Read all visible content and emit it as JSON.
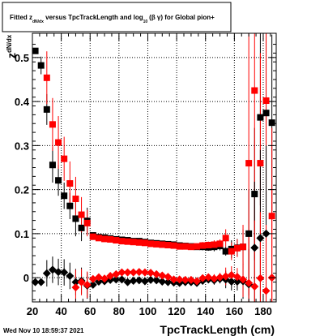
{
  "chart_data": {
    "type": "scatter",
    "title": {
      "prefix": "Fitted  z",
      "sub": "dN/dx",
      "middle": "  versus TpcTrackLength and log",
      "sub2": "10",
      "suffix": "(β γ) for Global pion+"
    },
    "xlabel": "TpcTrackLength (cm)",
    "ylabel": {
      "main": "z",
      "sub": "dN/dx"
    },
    "xlim": [
      20,
      189
    ],
    "ylim": [
      -0.055,
      0.555
    ],
    "xticks": [
      20,
      40,
      60,
      80,
      100,
      120,
      140,
      160,
      180
    ],
    "yticks": [
      0,
      0.1,
      0.2,
      0.3,
      0.4,
      0.5
    ],
    "ytick_labels": [
      "0",
      "0.1",
      "0.2",
      "0.3",
      "0.4",
      "0.5"
    ],
    "grid": true,
    "footer": "Wed Nov 10 18:59:37 2021",
    "series": [
      {
        "marker": "square",
        "color": "#000000",
        "points": [
          [
            22,
            0.515,
            0
          ],
          [
            26,
            0.482,
            0.02
          ],
          [
            30,
            0.382,
            0.035
          ],
          [
            34,
            0.256,
            0.04
          ],
          [
            38,
            0.221,
            0.035
          ],
          [
            42,
            0.186,
            0.03
          ],
          [
            46,
            0.163,
            0.03
          ],
          [
            50,
            0.134,
            0.04
          ],
          [
            54,
            0.113,
            0.03
          ],
          [
            58,
            0.129,
            0.03
          ],
          [
            62,
            0.096,
            0.006
          ],
          [
            66,
            0.092,
            0.006
          ],
          [
            70,
            0.091,
            0.006
          ],
          [
            74,
            0.089,
            0.006
          ],
          [
            78,
            0.087,
            0.006
          ],
          [
            82,
            0.086,
            0.006
          ],
          [
            86,
            0.085,
            0.006
          ],
          [
            90,
            0.083,
            0.006
          ],
          [
            94,
            0.083,
            0.006
          ],
          [
            98,
            0.081,
            0.006
          ],
          [
            102,
            0.079,
            0.006
          ],
          [
            106,
            0.078,
            0.006
          ],
          [
            110,
            0.077,
            0.006
          ],
          [
            114,
            0.076,
            0.006
          ],
          [
            118,
            0.075,
            0.006
          ],
          [
            122,
            0.073,
            0.006
          ],
          [
            126,
            0.072,
            0.006
          ],
          [
            130,
            0.071,
            0.006
          ],
          [
            134,
            0.07,
            0.006
          ],
          [
            138,
            0.07,
            0.008
          ],
          [
            142,
            0.069,
            0.008
          ],
          [
            146,
            0.07,
            0.01
          ],
          [
            150,
            0.072,
            0.01
          ],
          [
            154,
            0.06,
            0.01
          ],
          [
            158,
            0.065,
            0.02
          ],
          [
            162,
            0.068,
            0.02
          ],
          [
            166,
            0.07,
            0.04
          ],
          [
            170,
            0.1,
            0.1
          ],
          [
            174,
            0.19,
            0.15
          ],
          [
            178,
            0.364,
            0.2
          ],
          [
            182,
            0.374,
            0.2
          ],
          [
            186,
            0.352,
            0.2
          ]
        ]
      },
      {
        "marker": "square",
        "color": "#ff0000",
        "points": [
          [
            30,
            0.454,
            0.06
          ],
          [
            34,
            0.348,
            0.06
          ],
          [
            38,
            0.307,
            0.06
          ],
          [
            42,
            0.27,
            0.05
          ],
          [
            46,
            0.214,
            0.05
          ],
          [
            50,
            0.179,
            0.05
          ],
          [
            54,
            0.143,
            0.04
          ],
          [
            58,
            0.124,
            0.03
          ],
          [
            62,
            0.093,
            0.006
          ],
          [
            66,
            0.09,
            0.006
          ],
          [
            70,
            0.088,
            0.006
          ],
          [
            74,
            0.087,
            0.006
          ],
          [
            78,
            0.085,
            0.006
          ],
          [
            82,
            0.083,
            0.006
          ],
          [
            86,
            0.082,
            0.006
          ],
          [
            90,
            0.081,
            0.006
          ],
          [
            94,
            0.08,
            0.006
          ],
          [
            98,
            0.079,
            0.006
          ],
          [
            102,
            0.077,
            0.006
          ],
          [
            106,
            0.076,
            0.006
          ],
          [
            110,
            0.075,
            0.006
          ],
          [
            114,
            0.074,
            0.006
          ],
          [
            118,
            0.073,
            0.006
          ],
          [
            122,
            0.071,
            0.006
          ],
          [
            126,
            0.071,
            0.006
          ],
          [
            130,
            0.07,
            0.006
          ],
          [
            134,
            0.071,
            0.006
          ],
          [
            138,
            0.073,
            0.008
          ],
          [
            142,
            0.074,
            0.008
          ],
          [
            146,
            0.075,
            0.01
          ],
          [
            150,
            0.077,
            0.01
          ],
          [
            154,
            0.09,
            0.02
          ],
          [
            158,
            0.06,
            0.02
          ],
          [
            162,
            0.067,
            0.02
          ],
          [
            166,
            0.07,
            0.05
          ],
          [
            170,
            0.26,
            0.3
          ],
          [
            174,
            0.425,
            0.3
          ],
          [
            178,
            0.26,
            0.25
          ],
          [
            182,
            0.402,
            0.25
          ],
          [
            186,
            0.14,
            0.2
          ]
        ]
      },
      {
        "marker": "diamond",
        "color": "#000000",
        "points": [
          [
            22,
            -0.01,
            0
          ],
          [
            26,
            -0.01,
            0
          ],
          [
            30,
            0.01,
            0.03
          ],
          [
            34,
            0.018,
            0.03
          ],
          [
            38,
            0.013,
            0.03
          ],
          [
            42,
            0.012,
            0.03
          ],
          [
            46,
            0.004,
            0.03
          ],
          [
            50,
            -0.01,
            0.03
          ],
          [
            54,
            -0.007,
            0.03
          ],
          [
            58,
            -0.018,
            0.03
          ],
          [
            62,
            -0.016,
            0.006
          ],
          [
            66,
            -0.009,
            0.006
          ],
          [
            70,
            -0.008,
            0.006
          ],
          [
            74,
            -0.005,
            0.006
          ],
          [
            78,
            -0.004,
            0.006
          ],
          [
            82,
            -0.004,
            0.006
          ],
          [
            86,
            -0.01,
            0.006
          ],
          [
            90,
            -0.007,
            0.006
          ],
          [
            94,
            -0.006,
            0.006
          ],
          [
            98,
            -0.008,
            0.006
          ],
          [
            102,
            -0.005,
            0.006
          ],
          [
            106,
            -0.006,
            0.006
          ],
          [
            110,
            -0.009,
            0.006
          ],
          [
            114,
            -0.01,
            0.006
          ],
          [
            118,
            -0.011,
            0.006
          ],
          [
            122,
            -0.012,
            0.006
          ],
          [
            126,
            -0.01,
            0.006
          ],
          [
            130,
            -0.01,
            0.006
          ],
          [
            134,
            -0.012,
            0.006
          ],
          [
            138,
            -0.007,
            0.008
          ],
          [
            142,
            -0.004,
            0.008
          ],
          [
            146,
            -0.006,
            0.01
          ],
          [
            150,
            -0.003,
            0.01
          ],
          [
            154,
            -0.004,
            0.02
          ],
          [
            158,
            -0.009,
            0.02
          ],
          [
            162,
            -0.009,
            0.02
          ],
          [
            166,
            -0.008,
            0.04
          ],
          [
            170,
            -0.015,
            0.08
          ],
          [
            174,
            0.068,
            0.15
          ],
          [
            178,
            0.09,
            0.2
          ],
          [
            182,
            0.1,
            0.2
          ]
        ]
      },
      {
        "marker": "diamond",
        "color": "#ff0000",
        "points": [
          [
            50,
            -0.022,
            0.04
          ],
          [
            54,
            -0.01,
            0.03
          ],
          [
            58,
            -0.016,
            0.03
          ],
          [
            62,
            -0.003,
            0.006
          ],
          [
            66,
            0.001,
            0.006
          ],
          [
            70,
            -0.002,
            0.006
          ],
          [
            74,
            0.004,
            0.006
          ],
          [
            78,
            0.008,
            0.006
          ],
          [
            82,
            0.012,
            0.006
          ],
          [
            86,
            0.012,
            0.006
          ],
          [
            90,
            0.012,
            0.006
          ],
          [
            94,
            0.013,
            0.006
          ],
          [
            98,
            0.012,
            0.006
          ],
          [
            102,
            0.011,
            0.006
          ],
          [
            106,
            0.008,
            0.006
          ],
          [
            110,
            0.005,
            0.006
          ],
          [
            114,
            0.002,
            0.006
          ],
          [
            118,
            -0.004,
            0.006
          ],
          [
            122,
            -0.004,
            0.006
          ],
          [
            126,
            -0.005,
            0.006
          ],
          [
            130,
            -0.005,
            0.006
          ],
          [
            134,
            -0.008,
            0.006
          ],
          [
            138,
            -0.001,
            0.008
          ],
          [
            142,
            0.001,
            0.008
          ],
          [
            146,
            -0.002,
            0.01
          ],
          [
            150,
            0.001,
            0.01
          ],
          [
            154,
            0.003,
            0.02
          ],
          [
            158,
            0.006,
            0.02
          ],
          [
            162,
            0.002,
            0.02
          ],
          [
            166,
            -0.004,
            0.04
          ],
          [
            170,
            -0.012,
            0.1
          ],
          [
            174,
            -0.02,
            0.15
          ],
          [
            178,
            -0.001,
            0.15
          ],
          [
            182,
            -0.03,
            0.15
          ],
          [
            186,
            0.0,
            0.2
          ]
        ]
      }
    ]
  }
}
